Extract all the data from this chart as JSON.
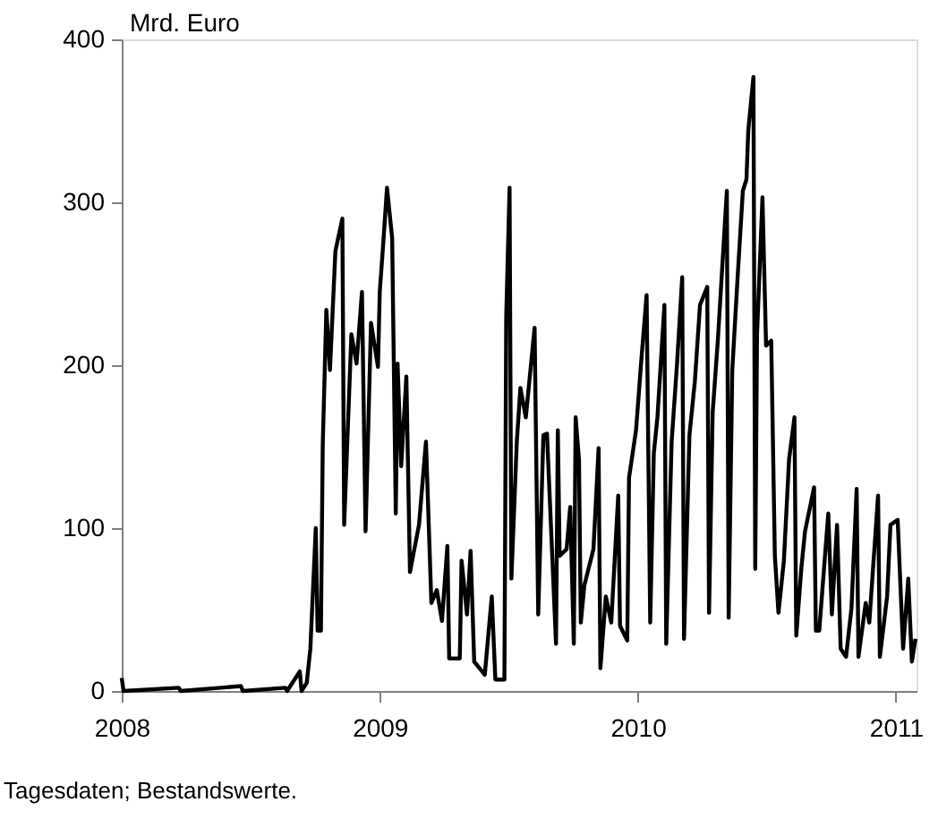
{
  "chart_data": {
    "type": "line",
    "ylabel": "Mrd. Euro",
    "annotations": [
      "Tagesdaten; Bestandswerte."
    ],
    "x": [
      2008.0,
      2008.007,
      2008.221,
      2008.228,
      2008.462,
      2008.469,
      2008.634,
      2008.641,
      2008.69,
      2008.697,
      2008.717,
      2008.731,
      2008.752,
      2008.759,
      2008.772,
      2008.779,
      2008.793,
      2008.807,
      2008.828,
      2008.855,
      2008.862,
      2008.89,
      2008.91,
      2008.931,
      2008.945,
      2008.966,
      2008.993,
      2009.0,
      2009.014,
      2009.028,
      2009.048,
      2009.062,
      2009.069,
      2009.083,
      2009.103,
      2009.117,
      2009.152,
      2009.179,
      2009.2,
      2009.221,
      2009.241,
      2009.262,
      2009.269,
      2009.31,
      2009.317,
      2009.338,
      2009.352,
      2009.366,
      2009.407,
      2009.434,
      2009.448,
      2009.483,
      2009.49,
      2009.503,
      2009.51,
      2009.531,
      2009.545,
      2009.566,
      2009.6,
      2009.614,
      2009.634,
      2009.648,
      2009.683,
      2009.69,
      2009.697,
      2009.724,
      2009.738,
      2009.752,
      2009.759,
      2009.772,
      2009.779,
      2009.793,
      2009.828,
      2009.848,
      2009.855,
      2009.876,
      2009.897,
      2009.924,
      2009.931,
      2009.959,
      2009.966,
      2009.993,
      2010.014,
      2010.034,
      2010.048,
      2010.062,
      2010.076,
      2010.103,
      2010.11,
      2010.131,
      2010.152,
      2010.172,
      2010.179,
      2010.2,
      2010.221,
      2010.241,
      2010.269,
      2010.276,
      2010.29,
      2010.31,
      2010.345,
      2010.352,
      2010.366,
      2010.386,
      2010.407,
      2010.421,
      2010.428,
      2010.448,
      2010.455,
      2010.462,
      2010.483,
      2010.497,
      2010.517,
      2010.531,
      2010.545,
      2010.566,
      2010.586,
      2010.607,
      2010.614,
      2010.634,
      2010.648,
      2010.683,
      2010.69,
      2010.703,
      2010.738,
      2010.752,
      2010.772,
      2010.786,
      2010.807,
      2010.828,
      2010.848,
      2010.855,
      2010.883,
      2010.897,
      2010.931,
      2010.938,
      2010.966,
      2010.979,
      2011.007,
      2011.028,
      2011.048,
      2011.062,
      2011.076
    ],
    "series": [
      {
        "color": "#000000",
        "values": [
          8,
          0,
          2,
          0,
          3,
          0,
          2,
          0,
          12,
          0,
          5,
          26,
          100,
          37,
          37,
          151,
          234,
          197,
          270,
          290,
          102,
          219,
          201,
          245,
          98,
          226,
          199,
          245,
          276,
          309,
          278,
          109,
          201,
          138,
          193,
          73,
          102,
          153,
          54,
          62,
          43,
          89,
          20,
          20,
          80,
          47,
          86,
          18,
          10,
          58,
          7,
          7,
          230,
          309,
          69,
          153,
          186,
          168,
          223,
          47,
          157,
          158,
          29,
          160,
          83,
          87,
          113,
          29,
          168,
          142,
          42,
          65,
          87,
          149,
          14,
          58,
          42,
          120,
          40,
          31,
          131,
          160,
          204,
          243,
          42,
          146,
          168,
          237,
          29,
          153,
          201,
          254,
          32,
          157,
          190,
          237,
          248,
          48,
          171,
          215,
          307,
          45,
          197,
          252,
          307,
          314,
          344,
          377,
          75,
          219,
          303,
          212,
          215,
          83,
          48,
          80,
          142,
          168,
          34,
          76,
          98,
          125,
          37,
          37,
          109,
          47,
          102,
          26,
          21,
          51,
          124,
          21,
          54,
          42,
          120,
          21,
          58,
          102,
          105,
          26,
          69,
          18,
          32
        ]
      }
    ],
    "xlim": [
      2008,
      2011.08
    ],
    "xticks": [
      2008,
      2009,
      2010,
      2011
    ],
    "ylim": [
      0,
      400
    ],
    "yticks": [
      0,
      100,
      200,
      300,
      400
    ],
    "grid": false,
    "marker": "none",
    "line_style": "solid"
  }
}
